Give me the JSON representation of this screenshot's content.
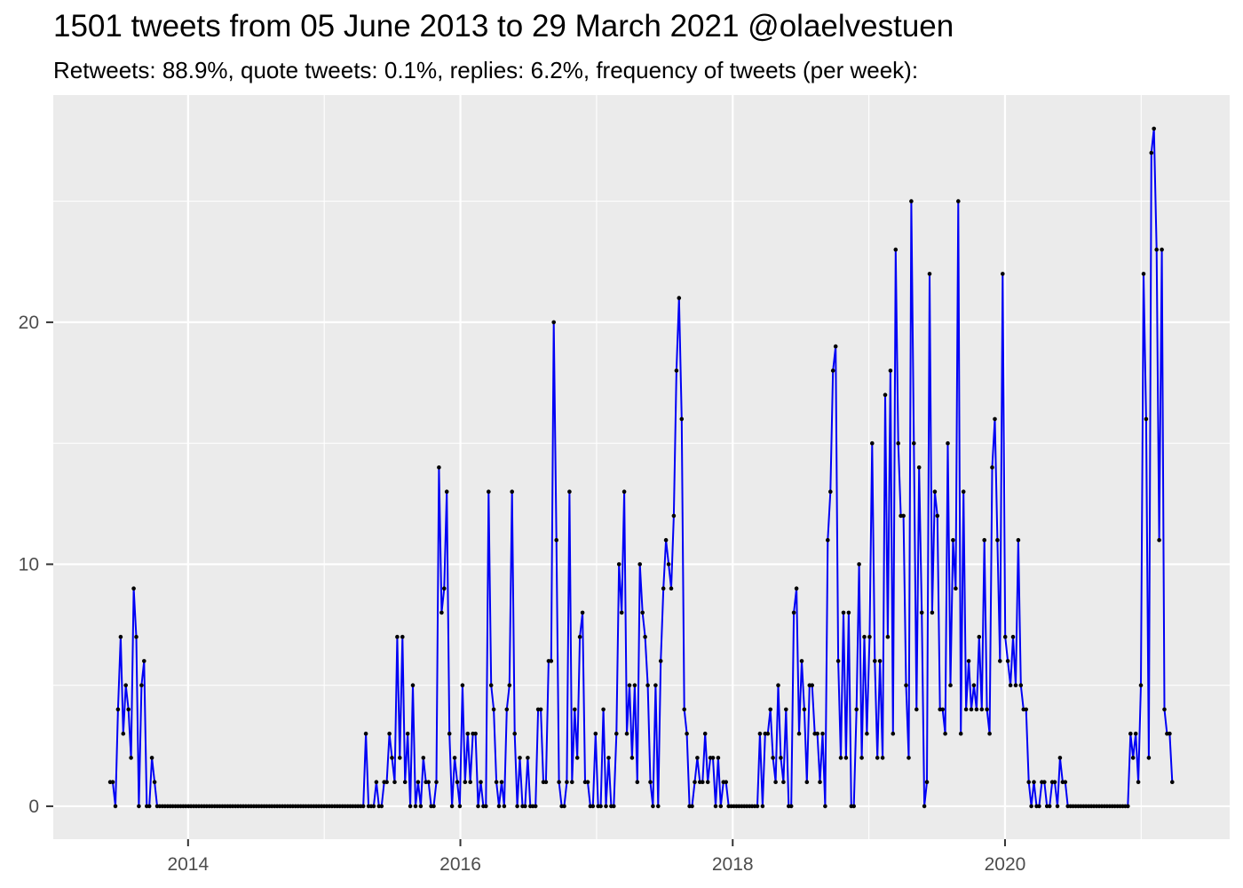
{
  "page": {
    "background": "#FFFFFF"
  },
  "header": {
    "title": "1501 tweets from 05 June 2013 to 29 March 2021 @olaelvestuen",
    "subtitle": "Retweets: 88.9%, quote tweets: 0.1%, replies: 6.2%, frequency of tweets (per week):"
  },
  "chart_data": {
    "type": "line",
    "title": "1501 tweets from 05 June 2013 to 29 March 2021 @olaelvestuen",
    "subtitle": "Retweets: 88.9%, quote tweets: 0.1%, replies: 6.2%, frequency of tweets (per week):",
    "xlabel": "",
    "ylabel": "",
    "legend_position": "none",
    "grid": "on",
    "x_axis": {
      "tick_labels": [
        "2014",
        "2016",
        "2018",
        "2020"
      ],
      "tick_values": [
        2014,
        2016,
        2018,
        2020
      ],
      "minor_tick_values": [
        2013,
        2015,
        2017,
        2019,
        2021
      ],
      "range": [
        2013.01,
        2021.65
      ]
    },
    "y_axis": {
      "tick_labels": [
        "0",
        "10",
        "20"
      ],
      "tick_values": [
        0,
        10,
        20
      ],
      "minor_tick_values": [
        5,
        15,
        25
      ],
      "range": [
        -1.36,
        29.39
      ]
    },
    "series": [
      {
        "name": "tweets_per_week",
        "start_year": 2013.428,
        "interval_years": 0.019165,
        "values": [
          1,
          1,
          0,
          4,
          7,
          3,
          5,
          4,
          2,
          9,
          7,
          0,
          5,
          6,
          0,
          0,
          2,
          1,
          0,
          0,
          0,
          0,
          0,
          0,
          0,
          0,
          0,
          0,
          0,
          0,
          0,
          0,
          0,
          0,
          0,
          0,
          0,
          0,
          0,
          0,
          0,
          0,
          0,
          0,
          0,
          0,
          0,
          0,
          0,
          0,
          0,
          0,
          0,
          0,
          0,
          0,
          0,
          0,
          0,
          0,
          0,
          0,
          0,
          0,
          0,
          0,
          0,
          0,
          0,
          0,
          0,
          0,
          0,
          0,
          0,
          0,
          0,
          0,
          0,
          0,
          0,
          0,
          0,
          0,
          0,
          0,
          0,
          0,
          0,
          0,
          0,
          0,
          0,
          0,
          0,
          0,
          0,
          0,
          3,
          0,
          0,
          0,
          1,
          0,
          0,
          1,
          1,
          3,
          2,
          1,
          7,
          2,
          7,
          1,
          3,
          0,
          5,
          0,
          1,
          0,
          2,
          1,
          1,
          0,
          0,
          1,
          14,
          8,
          9,
          13,
          3,
          0,
          2,
          1,
          0,
          5,
          1,
          3,
          1,
          3,
          3,
          0,
          1,
          0,
          0,
          13,
          5,
          4,
          1,
          0,
          1,
          0,
          4,
          5,
          13,
          3,
          0,
          2,
          0,
          0,
          2,
          0,
          0,
          0,
          4,
          4,
          1,
          1,
          6,
          6,
          20,
          11,
          1,
          0,
          0,
          1,
          13,
          1,
          4,
          2,
          7,
          8,
          1,
          1,
          0,
          0,
          3,
          0,
          0,
          4,
          0,
          2,
          0,
          0,
          3,
          10,
          8,
          13,
          3,
          5,
          2,
          5,
          1,
          10,
          8,
          7,
          5,
          1,
          0,
          5,
          0,
          6,
          9,
          11,
          10,
          9,
          12,
          18,
          21,
          16,
          4,
          3,
          0,
          0,
          1,
          2,
          1,
          1,
          3,
          1,
          2,
          2,
          0,
          2,
          0,
          1,
          1,
          0,
          0,
          0,
          0,
          0,
          0,
          0,
          0,
          0,
          0,
          0,
          0,
          3,
          0,
          3,
          3,
          4,
          2,
          1,
          5,
          2,
          1,
          4,
          0,
          0,
          8,
          9,
          3,
          6,
          4,
          1,
          5,
          5,
          3,
          3,
          1,
          3,
          0,
          11,
          13,
          18,
          19,
          6,
          2,
          8,
          2,
          8,
          0,
          0,
          4,
          10,
          2,
          7,
          3,
          7,
          15,
          6,
          2,
          6,
          2,
          17,
          7,
          18,
          3,
          23,
          15,
          12,
          12,
          5,
          2,
          25,
          15,
          4,
          14,
          8,
          0,
          1,
          22,
          8,
          13,
          12,
          4,
          4,
          3,
          15,
          5,
          11,
          9,
          25,
          3,
          13,
          4,
          6,
          4,
          5,
          4,
          7,
          4,
          11,
          4,
          3,
          14,
          16,
          11,
          6,
          22,
          7,
          6,
          5,
          7,
          5,
          11,
          5,
          4,
          4,
          1,
          0,
          1,
          0,
          0,
          1,
          1,
          0,
          0,
          1,
          1,
          0,
          2,
          1,
          1,
          0,
          0,
          0,
          0,
          0,
          0,
          0,
          0,
          0,
          0,
          0,
          0,
          0,
          0,
          0,
          0,
          0,
          0,
          0,
          0,
          0,
          0,
          0,
          0,
          3,
          2,
          3,
          1,
          5,
          22,
          16,
          2,
          27,
          28,
          23,
          11,
          23,
          4,
          3,
          3,
          1
        ]
      }
    ],
    "style": {
      "line_color": "#0000F5",
      "point_color": "#000000",
      "panel_color": "#EBEBEB",
      "grid_color": "#FFFFFF",
      "axis_text_color": "#4D4D4D",
      "tick_mark_color": "#333333",
      "title_color": "#000000"
    }
  }
}
